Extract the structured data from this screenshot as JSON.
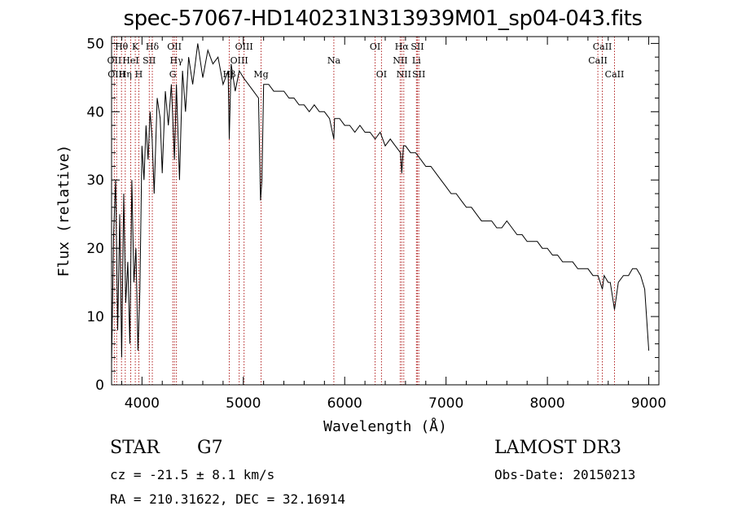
{
  "header": {
    "title": "spec-57067-HD140231N313939M01_sp04-043.fits"
  },
  "info": {
    "object_class": "STAR",
    "subclass": "G7",
    "survey": "LAMOST DR3",
    "redshift": "cz = -21.5 ± 8.1 km/s",
    "obs_date": "Obs-Date: 20150213",
    "coords": "RA = 210.31622, DEC =  32.16914"
  },
  "colors": {
    "spectrum": "#000000",
    "line_marker": "#b22222",
    "axes": "#000000"
  },
  "chart_data": {
    "type": "line",
    "title": "spec-57067-HD140231N313939M01_sp04-043.fits",
    "xlabel": "Wavelength (Å)",
    "ylabel": "Flux (relative)",
    "xlim": [
      3700,
      9100
    ],
    "ylim": [
      0,
      51
    ],
    "x_ticks": [
      4000,
      5000,
      6000,
      7000,
      8000,
      9000
    ],
    "y_ticks": [
      0,
      10,
      20,
      30,
      40,
      50
    ],
    "grid": false,
    "spectrum": {
      "x": [
        3700,
        3720,
        3740,
        3760,
        3780,
        3800,
        3820,
        3840,
        3860,
        3880,
        3900,
        3920,
        3940,
        3960,
        3980,
        4000,
        4020,
        4040,
        4060,
        4080,
        4100,
        4120,
        4150,
        4180,
        4200,
        4230,
        4260,
        4290,
        4320,
        4340,
        4370,
        4400,
        4430,
        4460,
        4500,
        4550,
        4600,
        4650,
        4700,
        4750,
        4800,
        4850,
        4861,
        4880,
        4920,
        4960,
        5000,
        5050,
        5100,
        5150,
        5170,
        5183,
        5200,
        5250,
        5300,
        5350,
        5400,
        5450,
        5500,
        5550,
        5600,
        5650,
        5700,
        5750,
        5800,
        5850,
        5893,
        5900,
        5950,
        6000,
        6050,
        6100,
        6150,
        6200,
        6250,
        6300,
        6350,
        6400,
        6450,
        6500,
        6550,
        6563,
        6580,
        6600,
        6650,
        6700,
        6750,
        6800,
        6850,
        6900,
        6950,
        7000,
        7050,
        7100,
        7150,
        7200,
        7250,
        7300,
        7350,
        7400,
        7450,
        7500,
        7550,
        7600,
        7650,
        7700,
        7750,
        7800,
        7850,
        7900,
        7950,
        8000,
        8050,
        8100,
        8150,
        8200,
        8250,
        8300,
        8350,
        8400,
        8450,
        8500,
        8542,
        8560,
        8600,
        8620,
        8662,
        8700,
        8750,
        8800,
        8840,
        8880,
        8920,
        8960,
        9000
      ],
      "y": [
        3,
        22,
        30,
        8,
        25,
        4,
        28,
        12,
        18,
        6,
        30,
        15,
        20,
        5,
        14,
        35,
        30,
        38,
        33,
        40,
        36,
        28,
        42,
        39,
        31,
        43,
        38,
        44,
        33,
        44,
        30,
        46,
        40,
        48,
        44,
        50,
        45,
        49,
        47,
        48,
        44,
        46,
        36,
        47,
        43,
        46,
        45,
        44,
        43,
        42,
        27,
        30,
        44,
        44,
        43,
        43,
        43,
        42,
        42,
        41,
        41,
        40,
        41,
        40,
        40,
        39,
        36,
        39,
        39,
        38,
        38,
        37,
        38,
        37,
        37,
        36,
        37,
        35,
        36,
        35,
        34,
        31,
        35,
        35,
        34,
        34,
        33,
        32,
        32,
        31,
        30,
        29,
        28,
        28,
        27,
        26,
        26,
        25,
        24,
        24,
        24,
        23,
        23,
        24,
        23,
        22,
        22,
        21,
        21,
        21,
        20,
        20,
        19,
        19,
        18,
        18,
        18,
        17,
        17,
        17,
        16,
        16,
        14,
        16,
        15,
        15,
        11,
        15,
        16,
        16,
        17,
        17,
        16,
        14,
        5
      ]
    },
    "line_markers": [
      {
        "label": "Hθ",
        "row": 0,
        "x": 3798
      },
      {
        "label": "K",
        "row": 0,
        "x": 3934
      },
      {
        "label": "Hδ",
        "row": 0,
        "x": 4102
      },
      {
        "label": "OII",
        "row": 0,
        "x": 4320
      },
      {
        "label": "OIII",
        "row": 0,
        "x": 5007
      },
      {
        "label": "OI",
        "row": 0,
        "x": 6300
      },
      {
        "label": "Hα",
        "row": 0,
        "x": 6563
      },
      {
        "label": "SII",
        "row": 0,
        "x": 6717
      },
      {
        "label": "CaII",
        "row": 0,
        "x": 8542
      },
      {
        "label": "OII",
        "row": 1,
        "x": 3727
      },
      {
        "label": "HeI",
        "row": 1,
        "x": 3889
      },
      {
        "label": "SII",
        "row": 1,
        "x": 4072
      },
      {
        "label": "Hγ",
        "row": 1,
        "x": 4340
      },
      {
        "label": "OIII",
        "row": 1,
        "x": 4959
      },
      {
        "label": "Na",
        "row": 1,
        "x": 5893
      },
      {
        "label": "NII",
        "row": 1,
        "x": 6548
      },
      {
        "label": "Li",
        "row": 1,
        "x": 6708
      },
      {
        "label": "CaII",
        "row": 1,
        "x": 8498
      },
      {
        "label": "OIII",
        "row": 2,
        "x": 3750
      },
      {
        "label": "Hη",
        "row": 2,
        "x": 3835
      },
      {
        "label": "H",
        "row": 2,
        "x": 3969
      },
      {
        "label": "G",
        "row": 2,
        "x": 4304
      },
      {
        "label": "Hβ",
        "row": 2,
        "x": 4861
      },
      {
        "label": "Mg",
        "row": 2,
        "x": 5175
      },
      {
        "label": "OI",
        "row": 2,
        "x": 6363
      },
      {
        "label": "NII",
        "row": 2,
        "x": 6583
      },
      {
        "label": "SII",
        "row": 2,
        "x": 6731
      },
      {
        "label": "CaII",
        "row": 2,
        "x": 8662
      }
    ]
  }
}
